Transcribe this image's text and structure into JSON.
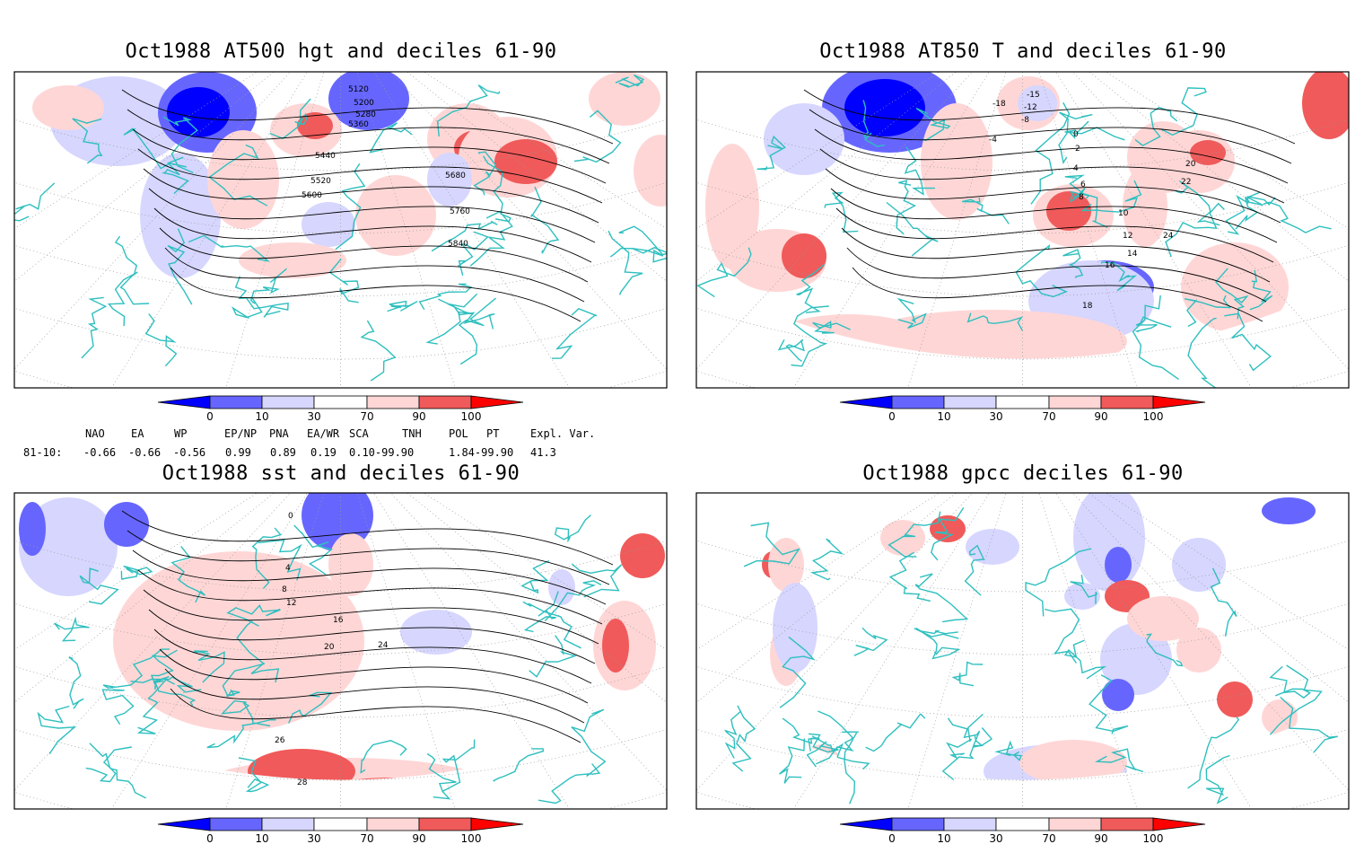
{
  "panels": [
    {
      "id": "p1",
      "title": "Oct1988 AT500 hgt and deciles 61-90",
      "contour_labels": [
        "5120",
        "5200",
        "5280",
        "5360",
        "5440",
        "5520",
        "5600",
        "5680",
        "5760",
        "5840"
      ]
    },
    {
      "id": "p2",
      "title": "Oct1988 AT850 T and deciles 61-90",
      "contour_labels": [
        "-18",
        "-15",
        "-12",
        "-8",
        "-4",
        "0",
        "2",
        "4",
        "6",
        "8",
        "10",
        "12",
        "14",
        "16",
        "18",
        "20",
        "22",
        "24"
      ]
    },
    {
      "id": "p3",
      "title": "Oct1988 sst and deciles 61-90",
      "contour_labels": [
        "0",
        "4",
        "8",
        "12",
        "16",
        "20",
        "24",
        "26",
        "28"
      ]
    },
    {
      "id": "p4",
      "title": "Oct1988 gpcc deciles 61-90",
      "contour_labels": []
    }
  ],
  "colorbar": {
    "tick_labels": [
      "0",
      "10",
      "30",
      "70",
      "90",
      "100"
    ],
    "colors": {
      "dark_blue": "#0000ff",
      "mid_blue": "#6666ff",
      "light_blue": "#d6d6ff",
      "light_red": "#ffd6d6",
      "mid_red": "#f05a5a",
      "dark_red": "#ff0000"
    }
  },
  "indices": {
    "headers": [
      "NAO",
      "EA",
      "WP",
      "EP/NP",
      "PNA",
      "EA/WR",
      "SCA",
      "TNH",
      "POL",
      "PT",
      "Expl. Var."
    ],
    "row_label": "81-10:",
    "values": [
      "-0.66",
      "-0.66",
      "-0.56",
      "0.99",
      "0.89",
      "0.19",
      "0.10-99.90",
      "",
      "1.84-99.90",
      "",
      "41.3"
    ]
  },
  "colors": {
    "coast": "#2fbfbf",
    "contour": "#000000",
    "grid": "#999999"
  }
}
